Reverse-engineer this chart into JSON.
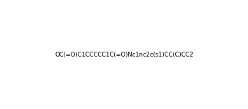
{
  "smiles": "OC(=O)C1CCCCC1C(=O)Nc1nc2c(s1)CC(C)CC2",
  "title": "",
  "background_color": "#ffffff",
  "line_color": "#000000",
  "figsize": [
    3.54,
    1.56
  ],
  "dpi": 100
}
